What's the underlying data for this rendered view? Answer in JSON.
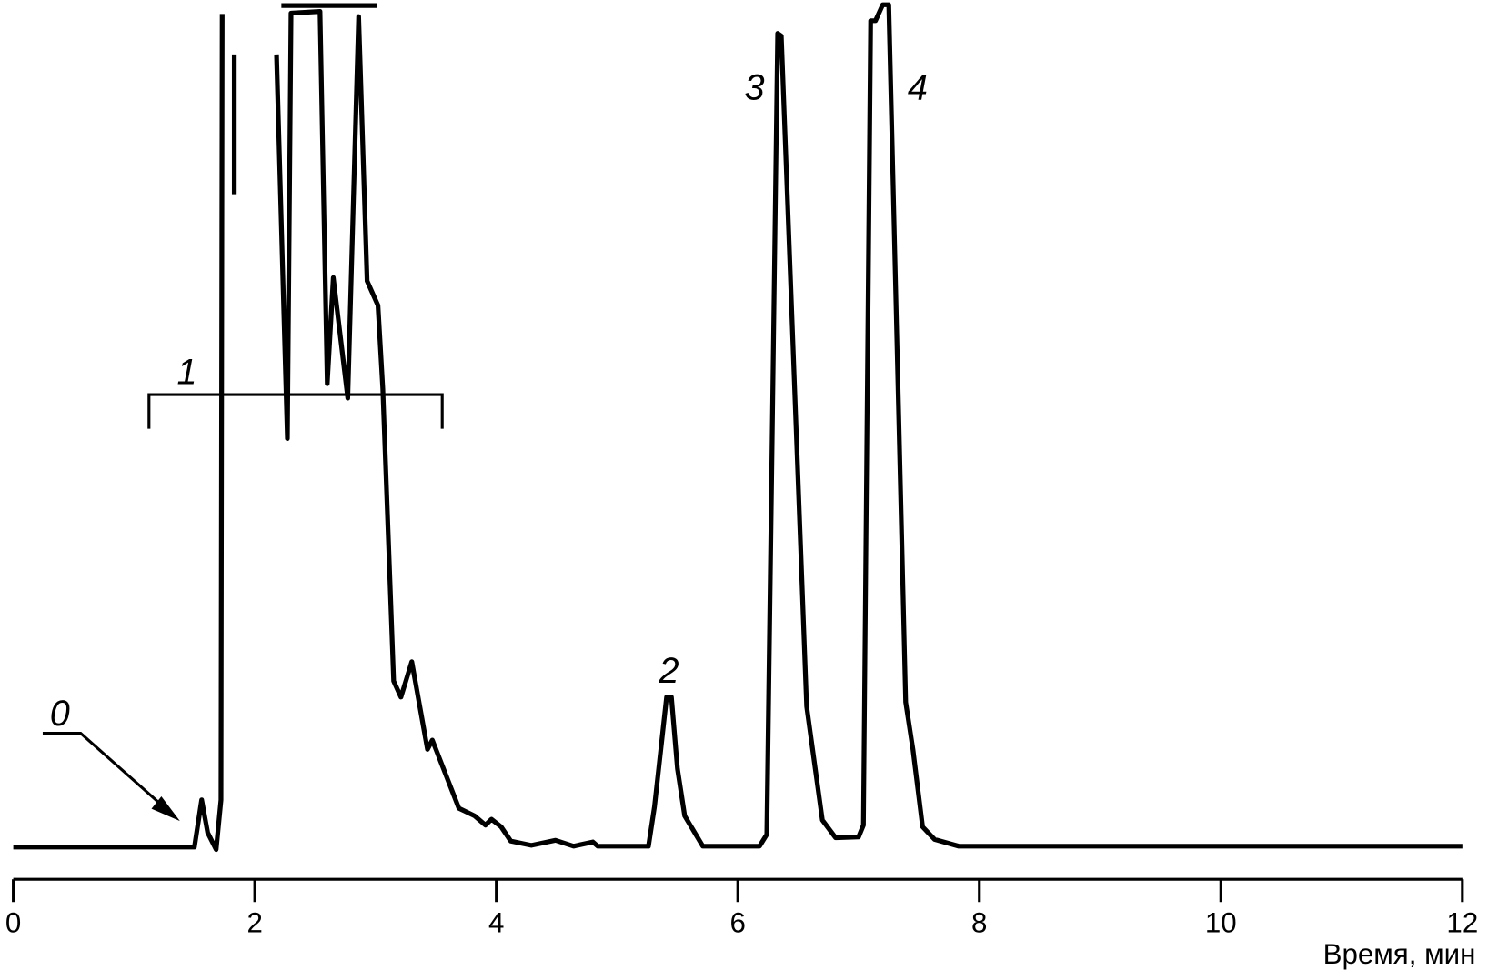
{
  "chart_data": {
    "type": "line",
    "xlabel": "Время, мин",
    "annotations": [
      "0",
      "1",
      "2",
      "3",
      "4"
    ],
    "xlim": [
      0,
      12
    ],
    "xticks": [
      0,
      2,
      4,
      6,
      8,
      10,
      12
    ],
    "ylim": [
      0,
      100
    ],
    "color": "#000000",
    "x": [
      0,
      1.5,
      1.56,
      1.61,
      1.68,
      1.72,
      1.73,
      null,
      1.83,
      1.83,
      null,
      2.22,
      3.01,
      null,
      2.18,
      2.27,
      2.3,
      2.54,
      2.6,
      2.65,
      2.77,
      2.86,
      2.93,
      3.02,
      3.06,
      3.15,
      3.21,
      3.3,
      3.43,
      3.47,
      3.69,
      3.82,
      3.91,
      3.96,
      4.04,
      4.12,
      4.29,
      4.49,
      4.64,
      4.8,
      4.84,
      5.26,
      5.31,
      5.41,
      5.45,
      5.5,
      5.56,
      5.71,
      6.18,
      6.24,
      6.33,
      6.36,
      6.57,
      6.7,
      6.81,
      7.0,
      7.04,
      7.1,
      7.14,
      7.2,
      7.25,
      7.39,
      7.45,
      7.53,
      7.63,
      7.83,
      12.0
    ],
    "values": [
      0,
      0,
      5.6,
      1.7,
      -0.3,
      5.6,
      98.9,
      null,
      94.1,
      77.5,
      null,
      99.9,
      99.9,
      null,
      94.1,
      48.5,
      99.0,
      99.2,
      55.0,
      67.6,
      53.3,
      98.6,
      67.2,
      64.3,
      54.4,
      19.7,
      17.8,
      22.0,
      11.6,
      12.7,
      4.6,
      3.7,
      2.6,
      3.3,
      2.4,
      0.7,
      0.2,
      0.8,
      0.1,
      0.6,
      0.1,
      0.1,
      4.8,
      17.8,
      17.8,
      9.3,
      3.7,
      0.1,
      0.1,
      1.5,
      96.6,
      96.3,
      16.7,
      3.2,
      1.1,
      1.2,
      2.6,
      98.1,
      98.1,
      100,
      100,
      17.2,
      11.6,
      2.4,
      0.9,
      0.1,
      0.1
    ]
  }
}
